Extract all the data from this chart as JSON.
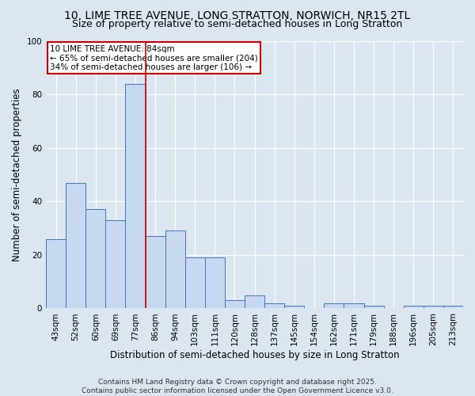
{
  "title_line1": "10, LIME TREE AVENUE, LONG STRATTON, NORWICH, NR15 2TL",
  "title_line2": "Size of property relative to semi-detached houses in Long Stratton",
  "xlabel": "Distribution of semi-detached houses by size in Long Stratton",
  "ylabel": "Number of semi-detached properties",
  "categories": [
    "43sqm",
    "52sqm",
    "60sqm",
    "69sqm",
    "77sqm",
    "86sqm",
    "94sqm",
    "103sqm",
    "111sqm",
    "120sqm",
    "128sqm",
    "137sqm",
    "145sqm",
    "154sqm",
    "162sqm",
    "171sqm",
    "179sqm",
    "188sqm",
    "196sqm",
    "205sqm",
    "213sqm"
  ],
  "bar_values": [
    26,
    47,
    37,
    33,
    84,
    27,
    29,
    19,
    19,
    3,
    5,
    2,
    1,
    0,
    2,
    2,
    1,
    0,
    1,
    1,
    1
  ],
  "bar_color": "#c6d9f0",
  "bar_edge_color": "#4472c4",
  "red_line_bar_index": 4,
  "annotation_title": "10 LIME TREE AVENUE: 84sqm",
  "annotation_line1": "← 65% of semi-detached houses are smaller (204)",
  "annotation_line2": "34% of semi-detached houses are larger (106) →",
  "annotation_box_color": "#ffffff",
  "annotation_box_edge": "#cc0000",
  "ylim": [
    0,
    100
  ],
  "yticks": [
    0,
    20,
    40,
    60,
    80,
    100
  ],
  "background_color": "#dce6f1",
  "plot_bg_color": "#dce6f1",
  "footer_line1": "Contains HM Land Registry data © Crown copyright and database right 2025.",
  "footer_line2": "Contains public sector information licensed under the Open Government Licence v3.0.",
  "title_fontsize": 10,
  "subtitle_fontsize": 9,
  "axis_label_fontsize": 8.5,
  "tick_fontsize": 7.5,
  "annotation_fontsize": 7.5,
  "footer_fontsize": 6.5
}
